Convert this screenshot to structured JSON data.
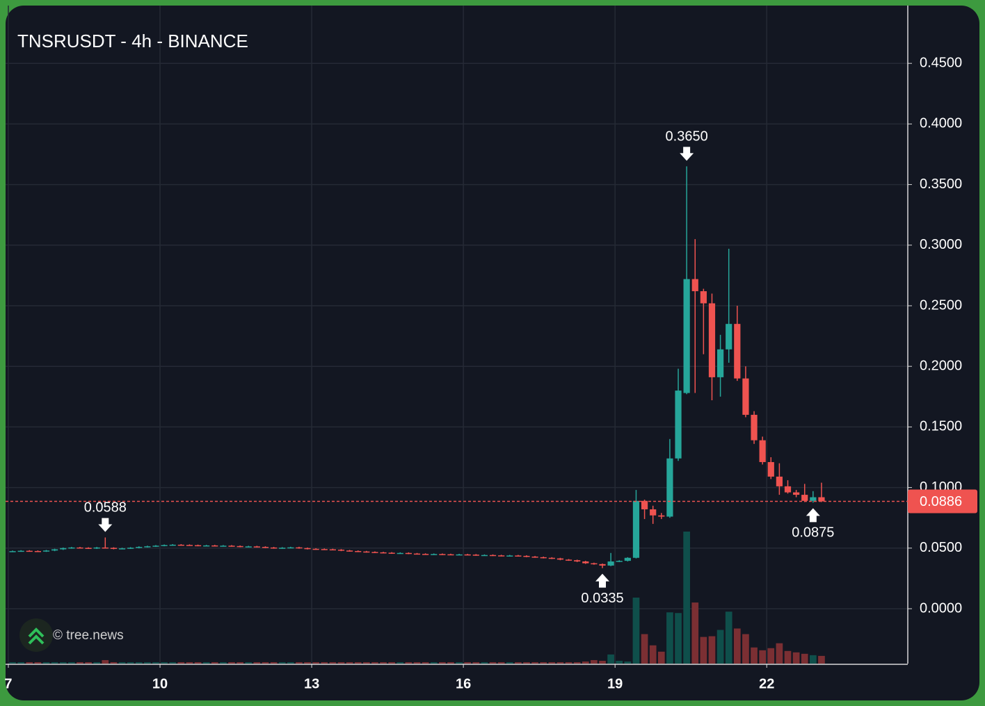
{
  "chart_data": {
    "type": "candlestick",
    "title": "TNSRUSDT - 4h - BINANCE",
    "watermark": "© tree.news",
    "x": [
      7,
      7.1667,
      7.3333,
      7.5,
      7.6667,
      7.8333,
      8,
      8.1667,
      8.3333,
      8.5,
      8.6667,
      8.8333,
      9,
      9.1667,
      9.3333,
      9.5,
      9.6667,
      9.8333,
      10,
      10.1667,
      10.3333,
      10.5,
      10.6667,
      10.8333,
      11,
      11.1667,
      11.3333,
      11.5,
      11.6667,
      11.8333,
      12,
      12.1667,
      12.3333,
      12.5,
      12.6667,
      12.8333,
      13,
      13.1667,
      13.3333,
      13.5,
      13.6667,
      13.8333,
      14,
      14.1667,
      14.3333,
      14.5,
      14.6667,
      14.8333,
      15,
      15.1667,
      15.3333,
      15.5,
      15.6667,
      15.8333,
      16,
      16.1667,
      16.3333,
      16.5,
      16.6667,
      16.8333,
      17,
      17.1667,
      17.3333,
      17.5,
      17.6667,
      17.8333,
      18,
      18.1667,
      18.3333,
      18.5,
      18.6667,
      18.8333,
      19,
      19.1667,
      19.3333,
      19.5,
      19.6667,
      19.8333,
      20,
      20.1667,
      20.3333,
      20.5,
      20.6667,
      20.8333,
      21,
      21.1667,
      21.3333,
      21.5,
      21.6667,
      21.8333,
      22,
      22.1667,
      22.3333,
      22.5,
      22.6667,
      22.8333,
      23
    ],
    "open": [
      0.0472,
      0.0475,
      0.0478,
      0.0476,
      0.0474,
      0.048,
      0.049,
      0.05,
      0.0505,
      0.0502,
      0.0498,
      0.0505,
      0.0502,
      0.0495,
      0.0498,
      0.0503,
      0.051,
      0.0515,
      0.052,
      0.0525,
      0.0528,
      0.0526,
      0.0524,
      0.052,
      0.0522,
      0.0518,
      0.052,
      0.0517,
      0.0512,
      0.0514,
      0.051,
      0.0505,
      0.05,
      0.0503,
      0.0506,
      0.05,
      0.0494,
      0.0492,
      0.049,
      0.0487,
      0.048,
      0.0476,
      0.0472,
      0.0468,
      0.0465,
      0.0462,
      0.0458,
      0.046,
      0.0455,
      0.0452,
      0.045,
      0.0451,
      0.0449,
      0.0447,
      0.0448,
      0.0446,
      0.0442,
      0.0443,
      0.044,
      0.0437,
      0.0439,
      0.0436,
      0.043,
      0.0425,
      0.042,
      0.0415,
      0.0405,
      0.04,
      0.039,
      0.0375,
      0.0368,
      0.0356,
      0.039,
      0.0395,
      0.042,
      0.089,
      0.082,
      0.077,
      0.076,
      0.124,
      0.178,
      0.272,
      0.262,
      0.252,
      0.191,
      0.214,
      0.235,
      0.19,
      0.16,
      0.139,
      0.121,
      0.109,
      0.101,
      0.096,
      0.094,
      0.089,
      0.092
    ],
    "high": [
      0.048,
      0.0483,
      0.0483,
      0.0481,
      0.0485,
      0.0495,
      0.0505,
      0.051,
      0.051,
      0.0507,
      0.051,
      0.0588,
      0.0507,
      0.0503,
      0.0508,
      0.0515,
      0.052,
      0.0525,
      0.053,
      0.0533,
      0.0533,
      0.0531,
      0.0529,
      0.0527,
      0.0527,
      0.0525,
      0.0525,
      0.0522,
      0.0519,
      0.0519,
      0.0515,
      0.051,
      0.0508,
      0.0511,
      0.0511,
      0.0505,
      0.0499,
      0.0497,
      0.0495,
      0.0492,
      0.0485,
      0.0481,
      0.0477,
      0.0473,
      0.047,
      0.0467,
      0.0465,
      0.0465,
      0.046,
      0.0457,
      0.0456,
      0.0456,
      0.0454,
      0.0453,
      0.0453,
      0.0451,
      0.0448,
      0.0448,
      0.0445,
      0.0444,
      0.0444,
      0.0441,
      0.0435,
      0.043,
      0.0425,
      0.042,
      0.041,
      0.0405,
      0.0395,
      0.038,
      0.0373,
      0.046,
      0.04,
      0.0425,
      0.098,
      0.09,
      0.085,
      0.079,
      0.14,
      0.198,
      0.365,
      0.305,
      0.264,
      0.26,
      0.226,
      0.297,
      0.25,
      0.2,
      0.163,
      0.142,
      0.125,
      0.12,
      0.106,
      0.098,
      0.103,
      0.097,
      0.104
    ],
    "low": [
      0.0467,
      0.047,
      0.0471,
      0.0469,
      0.0469,
      0.0475,
      0.0485,
      0.0495,
      0.0497,
      0.0493,
      0.0493,
      0.0497,
      0.049,
      0.049,
      0.0493,
      0.0498,
      0.0505,
      0.051,
      0.0515,
      0.052,
      0.0521,
      0.0519,
      0.0515,
      0.0515,
      0.0513,
      0.0513,
      0.0512,
      0.0507,
      0.0507,
      0.0505,
      0.05,
      0.0495,
      0.0495,
      0.0498,
      0.0495,
      0.0489,
      0.0487,
      0.0485,
      0.0482,
      0.0475,
      0.0471,
      0.0467,
      0.0463,
      0.046,
      0.0457,
      0.0453,
      0.0453,
      0.045,
      0.0447,
      0.0445,
      0.0445,
      0.0444,
      0.0442,
      0.0442,
      0.0441,
      0.0437,
      0.0437,
      0.0435,
      0.0432,
      0.0432,
      0.0431,
      0.0425,
      0.042,
      0.0415,
      0.041,
      0.04,
      0.0395,
      0.0385,
      0.037,
      0.0363,
      0.0335,
      0.0351,
      0.0385,
      0.039,
      0.0415,
      0.074,
      0.07,
      0.074,
      0.075,
      0.122,
      0.177,
      0.178,
      0.21,
      0.172,
      0.175,
      0.203,
      0.188,
      0.158,
      0.136,
      0.119,
      0.107,
      0.094,
      0.095,
      0.092,
      0.088,
      0.0875,
      0.088
    ],
    "close": [
      0.0475,
      0.0478,
      0.0476,
      0.0474,
      0.048,
      0.049,
      0.05,
      0.0505,
      0.0502,
      0.0498,
      0.0505,
      0.0502,
      0.0495,
      0.0498,
      0.0503,
      0.051,
      0.0515,
      0.052,
      0.0525,
      0.0528,
      0.0526,
      0.0524,
      0.052,
      0.0522,
      0.0518,
      0.052,
      0.0517,
      0.0512,
      0.0514,
      0.051,
      0.0505,
      0.05,
      0.0503,
      0.0506,
      0.05,
      0.0494,
      0.0492,
      0.049,
      0.0487,
      0.048,
      0.0476,
      0.0472,
      0.0468,
      0.0465,
      0.0462,
      0.0458,
      0.046,
      0.0455,
      0.0452,
      0.045,
      0.0451,
      0.0449,
      0.0447,
      0.0448,
      0.0446,
      0.0442,
      0.0443,
      0.044,
      0.0437,
      0.0439,
      0.0436,
      0.043,
      0.0425,
      0.042,
      0.0415,
      0.0405,
      0.04,
      0.039,
      0.0375,
      0.0368,
      0.0356,
      0.039,
      0.0395,
      0.042,
      0.089,
      0.082,
      0.077,
      0.076,
      0.124,
      0.18,
      0.272,
      0.262,
      0.252,
      0.191,
      0.214,
      0.235,
      0.19,
      0.16,
      0.139,
      0.121,
      0.109,
      0.101,
      0.096,
      0.094,
      0.089,
      0.092,
      0.0886
    ],
    "volume": [
      2,
      2,
      2,
      2,
      2,
      2,
      2,
      2,
      2,
      2,
      2,
      5,
      2,
      2,
      2,
      2,
      2,
      2,
      2,
      2,
      2,
      2,
      2,
      2,
      2,
      2,
      2,
      2,
      2,
      2,
      2,
      2,
      2,
      2,
      2,
      2,
      2,
      2,
      2,
      2,
      2,
      2,
      2,
      2,
      2,
      2,
      2,
      2,
      2,
      2,
      2,
      2,
      2,
      2,
      2,
      2,
      2,
      2,
      2,
      2,
      2,
      2,
      2,
      2,
      2,
      2,
      2,
      2,
      3,
      5,
      4,
      13,
      4,
      3,
      94,
      42,
      26,
      17,
      73,
      72,
      188,
      87,
      38,
      39,
      48,
      74,
      50,
      42,
      23,
      19,
      22,
      29,
      18,
      16,
      14,
      12,
      11
    ],
    "up_color": "#26a69a",
    "down_color": "#ef5350",
    "volume_up_color": "#0f4f4b",
    "volume_down_color": "#7b2f33",
    "xlim": [
      6.945,
      24.79
    ],
    "xticks": [
      7,
      10,
      13,
      16,
      19,
      22
    ],
    "ylim": [
      -0.0453,
      0.4977
    ],
    "yticks": [
      {
        "value": 0,
        "label": "0.0000"
      },
      {
        "value": 0.05,
        "label": "0.0500"
      },
      {
        "value": 0.1,
        "label": "0.1000"
      },
      {
        "value": 0.15,
        "label": "0.1500"
      },
      {
        "value": 0.2,
        "label": "0.2000"
      },
      {
        "value": 0.25,
        "label": "0.2500"
      },
      {
        "value": 0.3,
        "label": "0.3000"
      },
      {
        "value": 0.35,
        "label": "0.3500"
      },
      {
        "value": 0.4,
        "label": "0.4000"
      },
      {
        "value": 0.45,
        "label": "0.4500"
      }
    ],
    "grid": true,
    "price_line": {
      "value": 0.0886,
      "label": "0.0886",
      "color": "#ef5350"
    },
    "annotations": [
      {
        "x": 8.8333,
        "value": 0.0588,
        "label": "0.0588",
        "kind": "high"
      },
      {
        "x": 20.3333,
        "value": 0.365,
        "label": "0.3650",
        "kind": "high"
      },
      {
        "x": 18.6667,
        "value": 0.0335,
        "label": "0.0335",
        "kind": "low"
      },
      {
        "x": 22.8333,
        "value": 0.0875,
        "label": "0.0875",
        "kind": "low"
      }
    ]
  }
}
